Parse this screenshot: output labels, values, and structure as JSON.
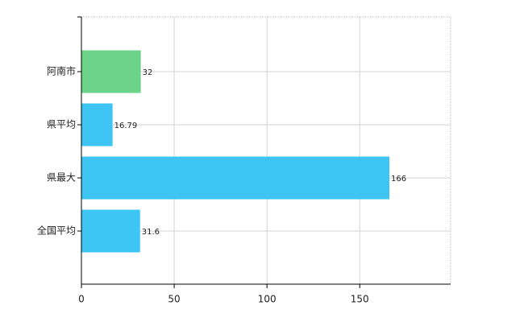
{
  "chart_data": {
    "type": "bar",
    "orientation": "horizontal",
    "categories": [
      "阿南市",
      "県平均",
      "県最大",
      "全国平均"
    ],
    "values": [
      32,
      16.79,
      166,
      31.6
    ],
    "colors": [
      "#6dd38b",
      "#3ec5f3",
      "#3ec5f3",
      "#3ec5f3"
    ],
    "xlim": [
      0,
      199
    ],
    "xticks": [
      0,
      50,
      100,
      150
    ],
    "grid": true
  }
}
